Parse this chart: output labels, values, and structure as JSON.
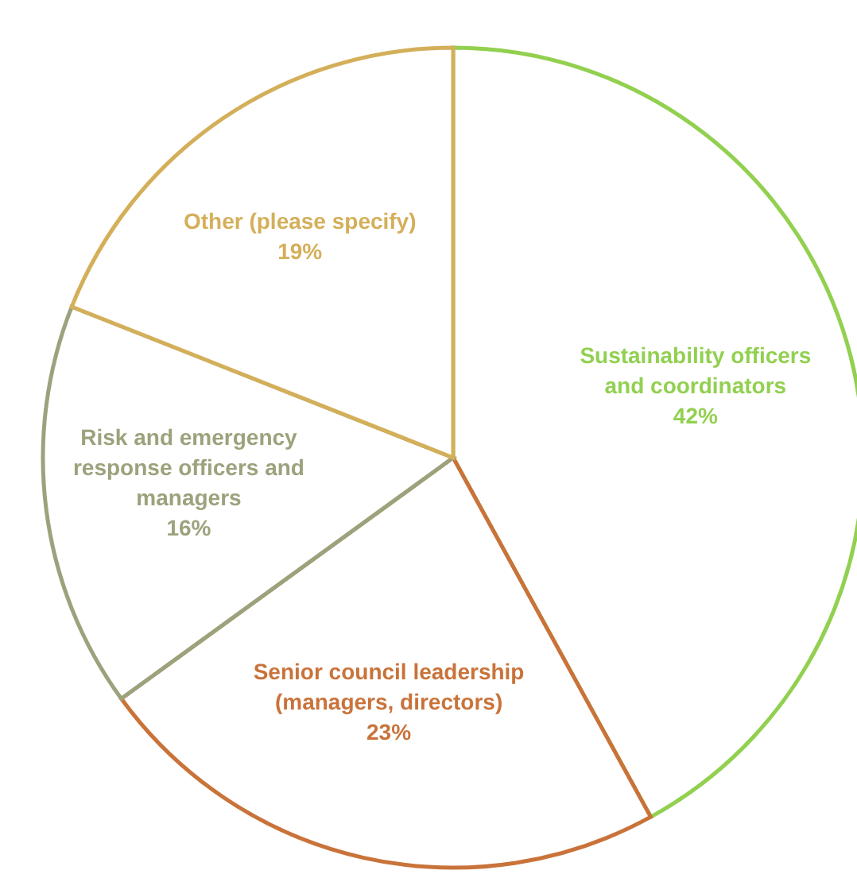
{
  "chart_data": {
    "type": "pie",
    "categories": [
      "Sustainability officers and coordinators",
      "Senior council leadership (managers, directors)",
      "Risk and emergency response officers and managers",
      "Other (please specify)"
    ],
    "values": [
      42,
      23,
      16,
      19
    ],
    "colors": [
      "#92d050",
      "#c9733a",
      "#9ca27c",
      "#d4af5a"
    ],
    "value_labels": [
      "42%",
      "23%",
      "16%",
      "19%"
    ],
    "legend": false
  }
}
